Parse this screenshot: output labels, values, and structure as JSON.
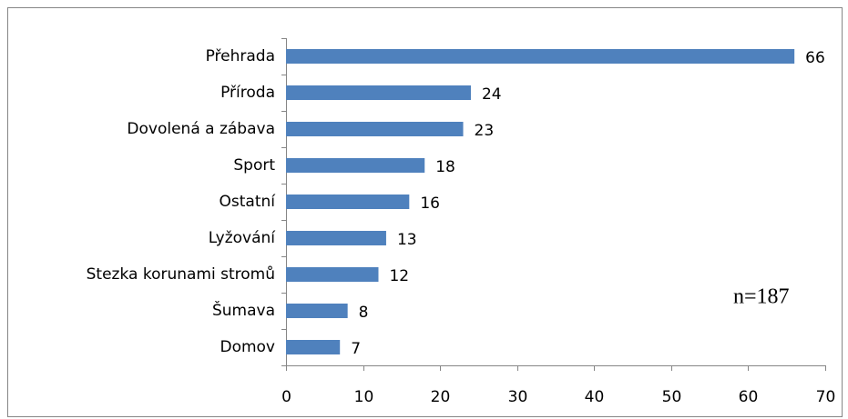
{
  "chart_data": {
    "type": "bar",
    "orientation": "horizontal",
    "categories": [
      "Přehrada",
      "Příroda",
      "Dovolená a zábava",
      "Sport",
      "Ostatní",
      "Lyžování",
      "Stezka korunami stromů",
      "Šumava",
      "Domov"
    ],
    "values": [
      66,
      24,
      23,
      18,
      16,
      13,
      12,
      8,
      7
    ],
    "color": "#4f81bd",
    "xlim": [
      0,
      70
    ],
    "xticks": [
      0,
      10,
      20,
      30,
      40,
      50,
      60,
      70
    ],
    "annotation": "n=187"
  }
}
